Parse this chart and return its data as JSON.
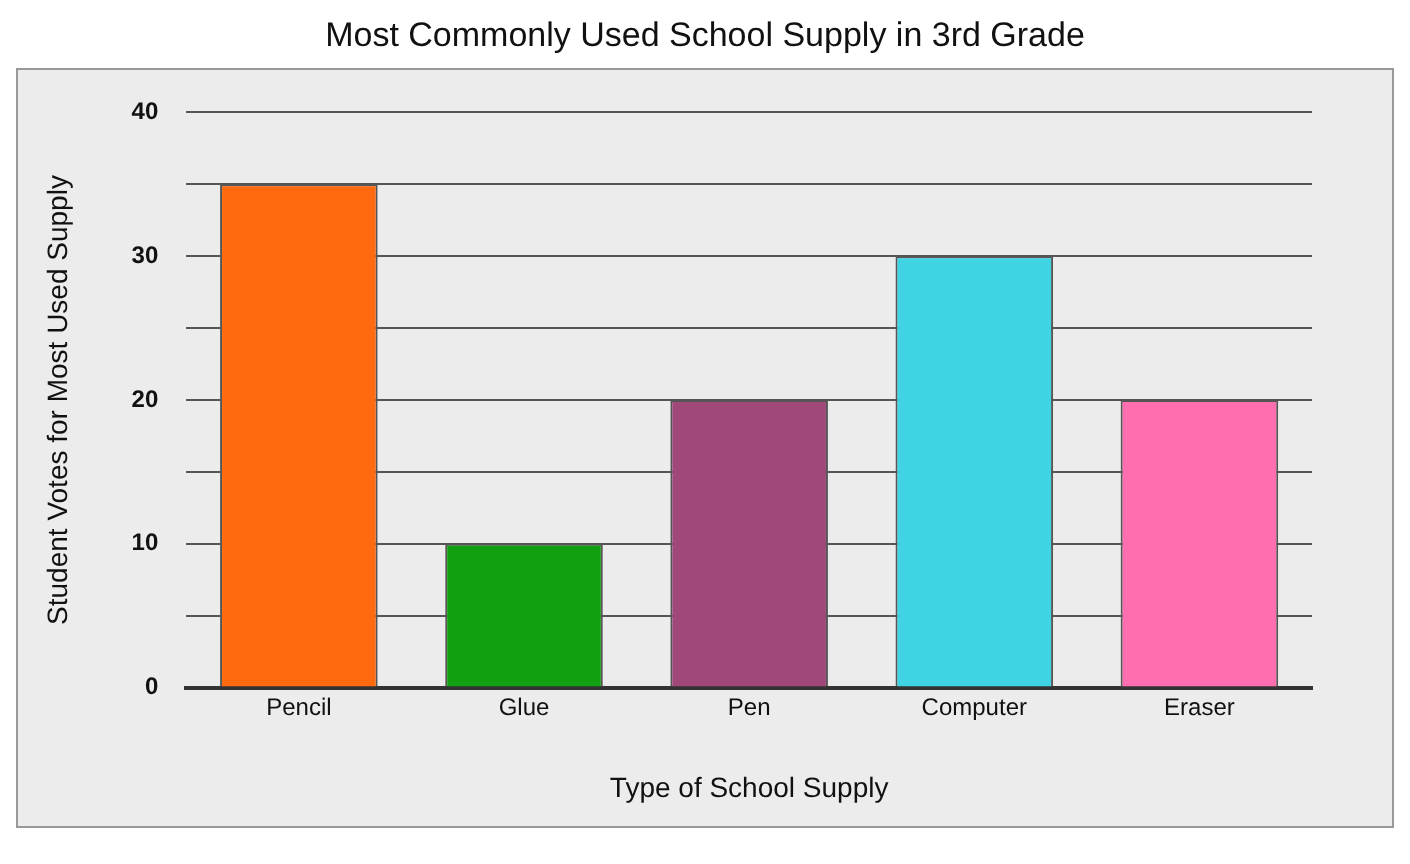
{
  "chart_data": {
    "type": "bar",
    "title": "Most Commonly Used School Supply in 3rd Grade",
    "xlabel": "Type of School Supply",
    "ylabel": "Student Votes for Most Used Supply",
    "categories": [
      "Pencil",
      "Glue",
      "Pen",
      "Computer",
      "Eraser"
    ],
    "values": [
      35,
      10,
      20,
      30,
      20
    ],
    "colors": [
      "#ff6a0e",
      "#10a010",
      "#a0487a",
      "#3fd3e3",
      "#ff6fb0"
    ],
    "ylim": [
      0,
      40
    ],
    "yticks": [
      0,
      {
        "value": 5,
        "label": null
      },
      10,
      {
        "value": 15,
        "label": null
      },
      20,
      {
        "value": 25,
        "label": null
      },
      30,
      {
        "value": 35,
        "label": null
      },
      40
    ],
    "grid": "y",
    "legend": false
  }
}
